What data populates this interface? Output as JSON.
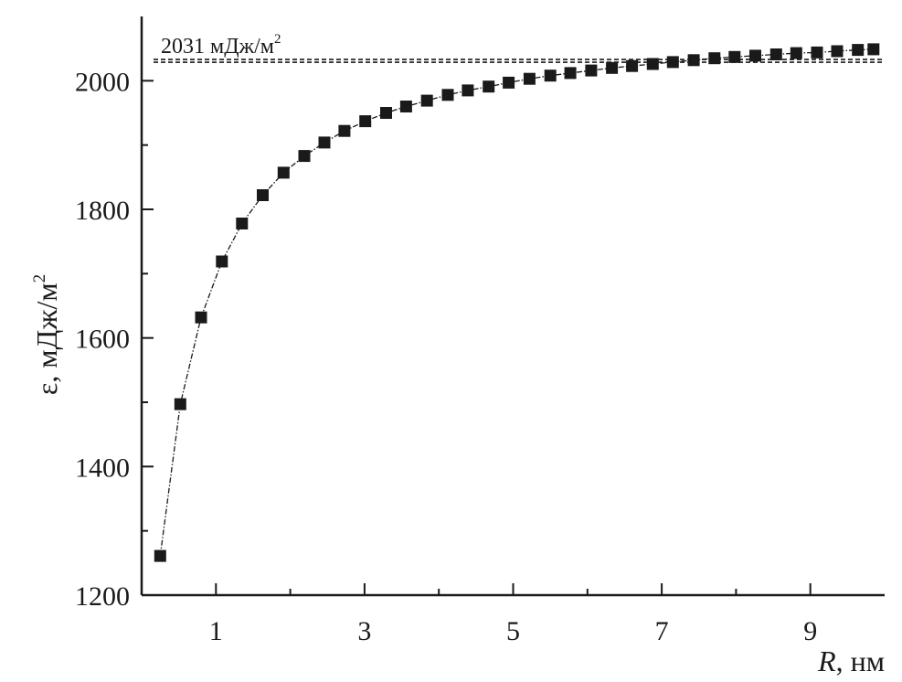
{
  "chart_data": {
    "type": "scatter",
    "title": "",
    "xlabel": "R, нм",
    "xlabel_var": "R",
    "xlabel_unit": ", нм",
    "ylabel": "ε, мДж/м²",
    "ylabel_main": "ε, мДж/м",
    "ylabel_sup": "2",
    "xlim": [
      0,
      10
    ],
    "ylim": [
      1200,
      2100
    ],
    "x_ticks": [
      1,
      3,
      5,
      7,
      9
    ],
    "x_minor_ticks": [
      2,
      4,
      6,
      8
    ],
    "y_ticks": [
      1200,
      1400,
      1600,
      1800,
      2000
    ],
    "y_minor_ticks": [
      1300,
      1500,
      1700,
      1900
    ],
    "x_tick_labels": [
      "1",
      "3",
      "5",
      "7",
      "9"
    ],
    "y_tick_labels": [
      "1200",
      "1400",
      "1600",
      "1800",
      "2000"
    ],
    "grid": false,
    "marker": "square",
    "color": "#1a1a1a",
    "reference_line": {
      "y": 2031,
      "style": "dashed",
      "label_main": "2031 мДж/м",
      "label_sup": "2"
    },
    "series": [
      {
        "x": [
          0.25,
          0.52,
          0.8,
          1.08,
          1.35,
          1.63,
          1.91,
          2.19,
          2.46,
          2.73,
          3.01,
          3.29,
          3.56,
          3.84,
          4.12,
          4.39,
          4.67,
          4.94,
          5.22,
          5.5,
          5.77,
          6.05,
          6.33,
          6.6,
          6.88,
          7.15,
          7.43,
          7.71,
          7.98,
          8.26,
          8.54,
          8.81,
          9.09,
          9.36,
          9.64,
          9.85
        ],
        "values": [
          1261,
          1497,
          1632,
          1719,
          1778,
          1822,
          1857,
          1883,
          1904,
          1922,
          1937,
          1950,
          1960,
          1969,
          1978,
          1985,
          1991,
          1997,
          2003,
          2008,
          2012,
          2016,
          2020,
          2023,
          2026,
          2029,
          2032,
          2035,
          2037,
          2039,
          2041,
          2043,
          2044,
          2046,
          2048,
          2049
        ]
      }
    ]
  }
}
